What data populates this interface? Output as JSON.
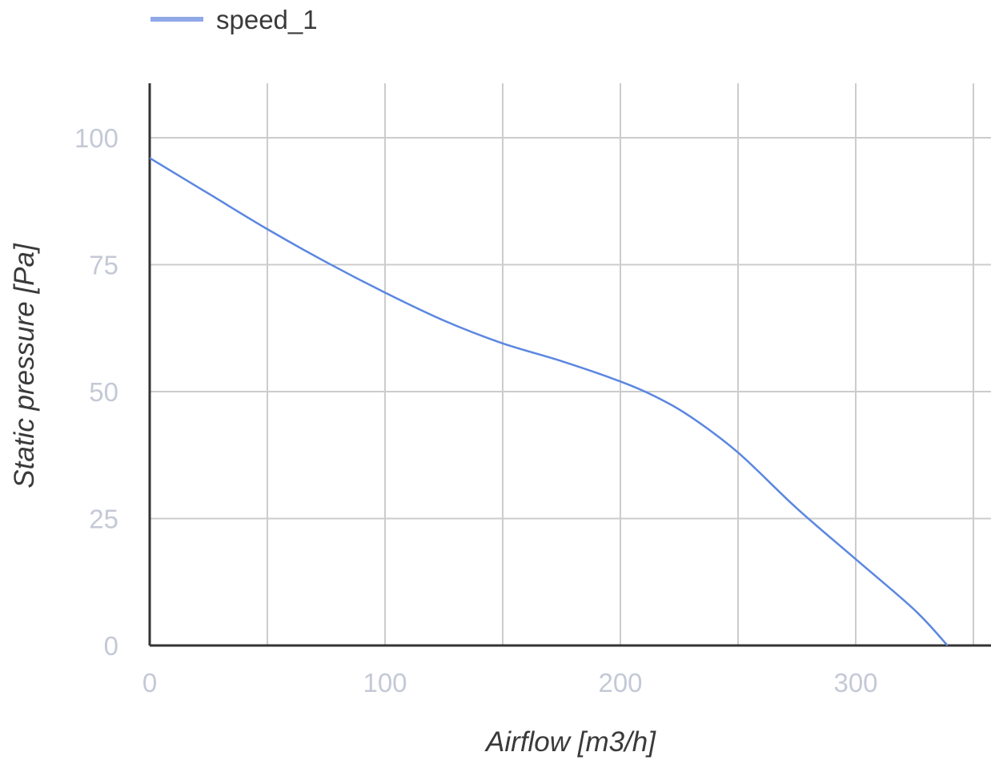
{
  "chart_data": {
    "type": "line",
    "xlabel": "Airflow [m3/h]",
    "ylabel": "Static pressure [Pa]",
    "xlim": [
      0,
      357
    ],
    "ylim": [
      0,
      110
    ],
    "x_ticks": [
      0,
      100,
      200,
      300
    ],
    "y_ticks": [
      0,
      25,
      50,
      75,
      100
    ],
    "x_gridlines": [
      50,
      100,
      150,
      200,
      250,
      300,
      350
    ],
    "grid": true,
    "legend": {
      "position": "top-left"
    },
    "colors": {
      "series": "#5b87e0",
      "legend_swatch": "#8fa8e8",
      "grid": "#cccccc",
      "axis": "#333333"
    },
    "series": [
      {
        "name": "speed_1",
        "x": [
          0,
          25,
          50,
          75,
          100,
          125,
          150,
          175,
          200,
          215,
          230,
          250,
          275,
          300,
          325,
          339
        ],
        "y": [
          96,
          89,
          82,
          75.5,
          69.5,
          64,
          59.5,
          56,
          52,
          49,
          45,
          38,
          27,
          17,
          7,
          0
        ]
      }
    ]
  }
}
